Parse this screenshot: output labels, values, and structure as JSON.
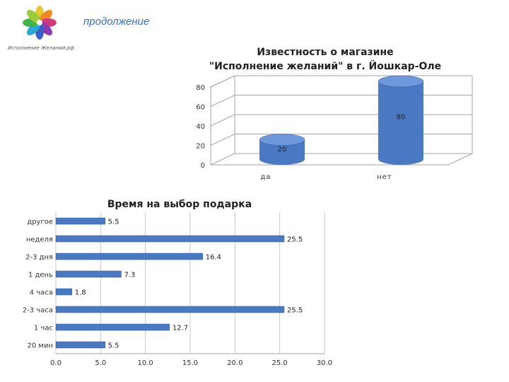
{
  "header": {
    "subtitle": "продолжение",
    "logo_text": "Исполнение Желаний.рф"
  },
  "colors": {
    "bar": "#4a78c2",
    "bar_dark": "#2f5aa0",
    "bar_light": "#6f98dc",
    "axis": "#a6a6a6",
    "subtitle": "#3a6fc4"
  },
  "chart_data": [
    {
      "type": "bar",
      "title": "Известность о магазине \"Исполнение желаний\" в г. Йошкар-Оле",
      "title_lines": [
        "Известность о магазине",
        "\"Исполнение желаний\" в г. Йошкар-Оле"
      ],
      "style": "3d-cylinder",
      "categories": [
        "да",
        "нет"
      ],
      "values": [
        20,
        80
      ],
      "ylim": [
        0,
        80
      ],
      "yticks": [
        0,
        20,
        40,
        60,
        80
      ],
      "grid": true,
      "data_labels": true
    },
    {
      "type": "bar",
      "orientation": "horizontal",
      "title": "Время на выбор подарка",
      "categories": [
        "другое",
        "неделя",
        "2-3 дня",
        "1 день",
        "4 часа",
        "2-3 часа",
        "1 час",
        "20 мин"
      ],
      "values": [
        5.5,
        25.5,
        16.4,
        7.3,
        1.8,
        25.5,
        12.7,
        5.5
      ],
      "xlim": [
        0,
        30
      ],
      "xticks": [
        "0.0",
        "5.0",
        "10.0",
        "15.0",
        "20.0",
        "25.0",
        "30.0"
      ],
      "grid": true,
      "data_labels": true
    }
  ]
}
